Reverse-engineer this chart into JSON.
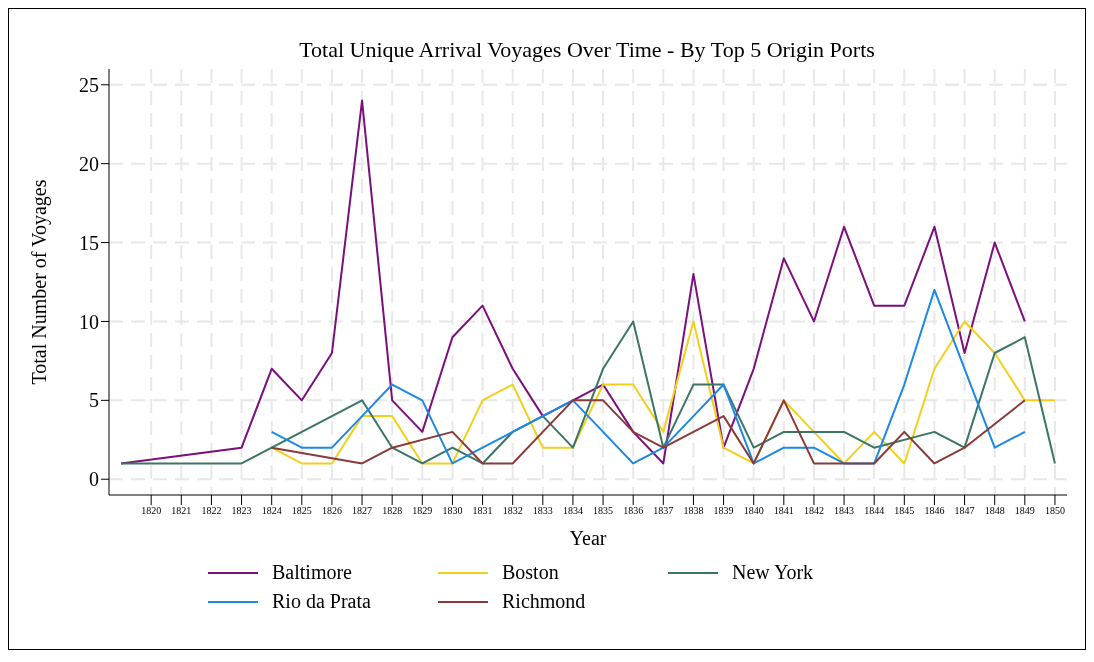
{
  "chart_data": {
    "type": "line",
    "title": "Total Unique Arrival Voyages Over Time - By Top 5 Origin Ports",
    "xlabel": "Year",
    "ylabel": "Total Number of Voyages",
    "xlim": [
      1818.6,
      1850.4
    ],
    "xticks": [
      1820,
      1821,
      1822,
      1823,
      1824,
      1825,
      1826,
      1827,
      1828,
      1829,
      1830,
      1831,
      1832,
      1833,
      1834,
      1835,
      1836,
      1837,
      1838,
      1839,
      1840,
      1841,
      1842,
      1843,
      1844,
      1845,
      1846,
      1847,
      1848,
      1849,
      1850
    ],
    "ylim": [
      -1,
      26
    ],
    "yticks": [
      0,
      5,
      10,
      15,
      20,
      25
    ],
    "grid": true,
    "legend": "bottom",
    "marker": "none",
    "line_style": "solid",
    "series": [
      {
        "name": "Baltimore",
        "color": "#7b0f7b",
        "x": [
          1819,
          1823,
          1824,
          1825,
          1826,
          1827,
          1828,
          1829,
          1830,
          1831,
          1832,
          1833,
          1834,
          1835,
          1836,
          1837,
          1838,
          1839,
          1840,
          1841,
          1842,
          1843,
          1844,
          1845,
          1846,
          1847,
          1848,
          1849
        ],
        "values": [
          1,
          2,
          7,
          5,
          8,
          24,
          5,
          3,
          9,
          11,
          7,
          4,
          5,
          6,
          3,
          1,
          13,
          2,
          7,
          14,
          10,
          16,
          11,
          11,
          16,
          8,
          15,
          10
        ]
      },
      {
        "name": "Boston",
        "color": "#f2cf1d",
        "x": [
          1824,
          1825,
          1826,
          1827,
          1828,
          1829,
          1830,
          1831,
          1832,
          1833,
          1834,
          1835,
          1836,
          1837,
          1838,
          1839,
          1840,
          1841,
          1842,
          1843,
          1844,
          1845,
          1846,
          1847,
          1848,
          1849,
          1850
        ],
        "values": [
          2,
          1,
          1,
          4,
          4,
          1,
          1,
          5,
          6,
          2,
          2,
          6,
          6,
          3,
          10,
          2,
          1,
          5,
          3,
          1,
          3,
          1,
          7,
          10,
          8,
          5,
          5
        ]
      },
      {
        "name": "New York",
        "color": "#3b7566",
        "x": [
          1819,
          1823,
          1824,
          1825,
          1826,
          1827,
          1828,
          1829,
          1830,
          1831,
          1832,
          1833,
          1834,
          1835,
          1836,
          1837,
          1838,
          1839,
          1840,
          1841,
          1842,
          1843,
          1844,
          1846,
          1847,
          1848,
          1849,
          1850
        ],
        "values": [
          1,
          1,
          2,
          3,
          4,
          5,
          2,
          1,
          2,
          1,
          3,
          4,
          2,
          7,
          10,
          2,
          6,
          6,
          2,
          3,
          3,
          3,
          2,
          3,
          2,
          8,
          9,
          1
        ]
      },
      {
        "name": "Rio da Prata",
        "color": "#1e88e5",
        "x": [
          1824,
          1825,
          1826,
          1827,
          1828,
          1829,
          1830,
          1831,
          1832,
          1833,
          1834,
          1835,
          1836,
          1837,
          1838,
          1839,
          1840,
          1841,
          1842,
          1843,
          1844,
          1845,
          1846,
          1847,
          1848,
          1849
        ],
        "values": [
          3,
          2,
          2,
          4,
          6,
          5,
          1,
          2,
          3,
          4,
          5,
          3,
          1,
          2,
          4,
          6,
          1,
          2,
          2,
          1,
          1,
          6,
          12,
          7,
          2,
          3
        ]
      },
      {
        "name": "Richmond",
        "color": "#8b3a3a",
        "x": [
          1824,
          1827,
          1828,
          1830,
          1831,
          1832,
          1833,
          1834,
          1835,
          1836,
          1837,
          1838,
          1839,
          1840,
          1841,
          1842,
          1843,
          1844,
          1845,
          1846,
          1847,
          1849
        ],
        "values": [
          2,
          1,
          2,
          3,
          1,
          1,
          3,
          5,
          5,
          3,
          2,
          3,
          4,
          1,
          5,
          1,
          1,
          1,
          3,
          1,
          2,
          5
        ]
      }
    ]
  }
}
